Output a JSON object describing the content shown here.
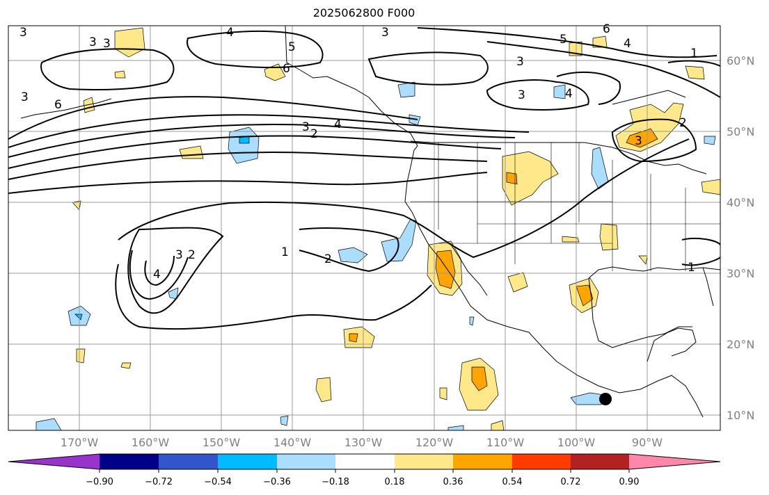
{
  "title": "2025062800 F000",
  "map": {
    "lat_ticks": [
      "60°N",
      "50°N",
      "40°N",
      "30°N",
      "20°N",
      "10°N"
    ],
    "lon_ticks": [
      "170°W",
      "160°W",
      "150°W",
      "140°W",
      "130°W",
      "120°W",
      "110°W",
      "100°W",
      "90°W"
    ],
    "contour_labels": [
      "3",
      "3",
      "4",
      "5",
      "3",
      "6",
      "5",
      "4",
      "1",
      "6",
      "3",
      "3",
      "4",
      "4",
      "3",
      "2",
      "2",
      "3",
      "1",
      "2",
      "3",
      "2",
      "4",
      "1",
      "3",
      "6",
      "3"
    ]
  },
  "colorbar": {
    "ticks": [
      "−0.90",
      "−0.72",
      "−0.54",
      "−0.36",
      "−0.18",
      "0.18",
      "0.36",
      "0.54",
      "0.72",
      "0.90"
    ],
    "colors": [
      "#9933cc",
      "#000088",
      "#3355cc",
      "#00bbff",
      "#aaddff",
      "#ffffff",
      "#ffe88a",
      "#ffa500",
      "#ff3b00",
      "#b22222",
      "#ff88aa"
    ]
  },
  "marker": {
    "type": "location-dot"
  }
}
